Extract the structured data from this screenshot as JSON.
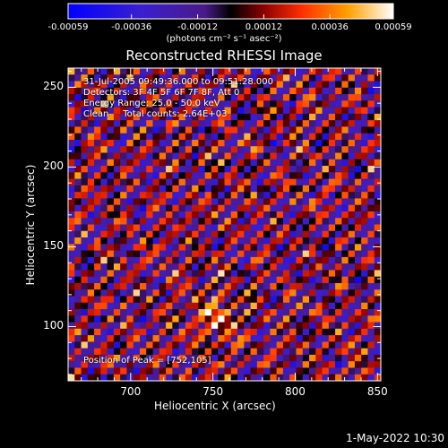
{
  "chart_data": {
    "type": "heatmap",
    "title": "Reconstructed RHESSI Image",
    "xlabel": "Heliocentric X (arcsec)",
    "ylabel": "Heliocentric Y (arcsec)",
    "xlim": [
      662,
      852
    ],
    "ylim": [
      66,
      262
    ],
    "xticks": [
      700,
      750,
      800,
      850
    ],
    "yticks": [
      100,
      150,
      200,
      250
    ],
    "colorbar": {
      "label": "(photons cm⁻² s⁻¹ asec⁻²)",
      "range": [
        -0.00059,
        0.00059
      ],
      "tick_labels": [
        "-0.00059",
        "-0.00036",
        "-0.00012",
        "0.00012",
        "0.00036",
        "0.00059"
      ],
      "tick_values": [
        -0.00059,
        -0.00036,
        -0.00012,
        0.00012,
        0.00036,
        0.00059
      ]
    },
    "annotations": [
      "31-Jul-2005 09:49:36.000 to 09:51:28.000",
      "Detectors: 3F 4F 5F 6F 7F 8F, Att 0",
      "Energy Range: 25.0 - 50.0 keV",
      "Clean     Total counts: 2.64E+03"
    ],
    "peak_label": "Position of Peak = [752,105]",
    "peak": [
      752,
      105
    ]
  },
  "footer": {
    "date": "1-May-2022 10:30"
  }
}
